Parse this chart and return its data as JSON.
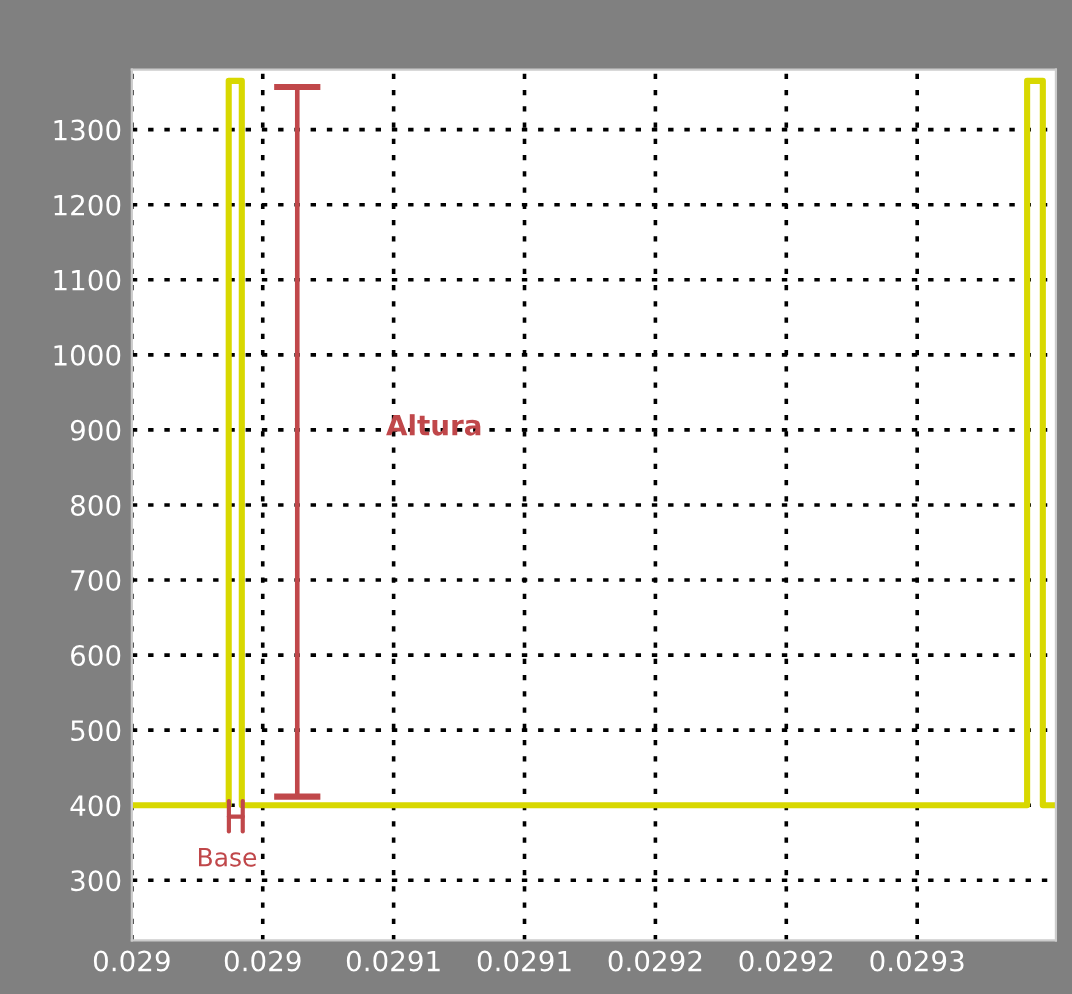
{
  "chart_data": {
    "type": "line",
    "x": [
      0.029,
      0.029037,
      0.029037,
      0.029042,
      0.029042,
      0.029342,
      0.029342,
      0.029348,
      0.029348,
      0.029353
    ],
    "series": [
      {
        "color": "#d8d800",
        "values": [
          400,
          400,
          1365,
          1365,
          400,
          400,
          1365,
          1365,
          400,
          400
        ]
      }
    ],
    "xlim": [
      0.029,
      0.029353
    ],
    "ylim": [
      220,
      1380
    ],
    "xticks": [
      {
        "value": 0.029,
        "label": "0.029"
      },
      {
        "value": 0.02905,
        "label": "0.029"
      },
      {
        "value": 0.0291,
        "label": "0.0291"
      },
      {
        "value": 0.02915,
        "label": "0.0291"
      },
      {
        "value": 0.0292,
        "label": "0.0292"
      },
      {
        "value": 0.02925,
        "label": "0.0292"
      },
      {
        "value": 0.0293,
        "label": "0.0293"
      }
    ],
    "yticks": [
      300,
      400,
      500,
      600,
      700,
      800,
      900,
      1000,
      1100,
      1200,
      1300
    ],
    "grid": true,
    "line_style": "solid",
    "marker": "none",
    "annotations": [
      "Altura",
      "Base"
    ]
  }
}
